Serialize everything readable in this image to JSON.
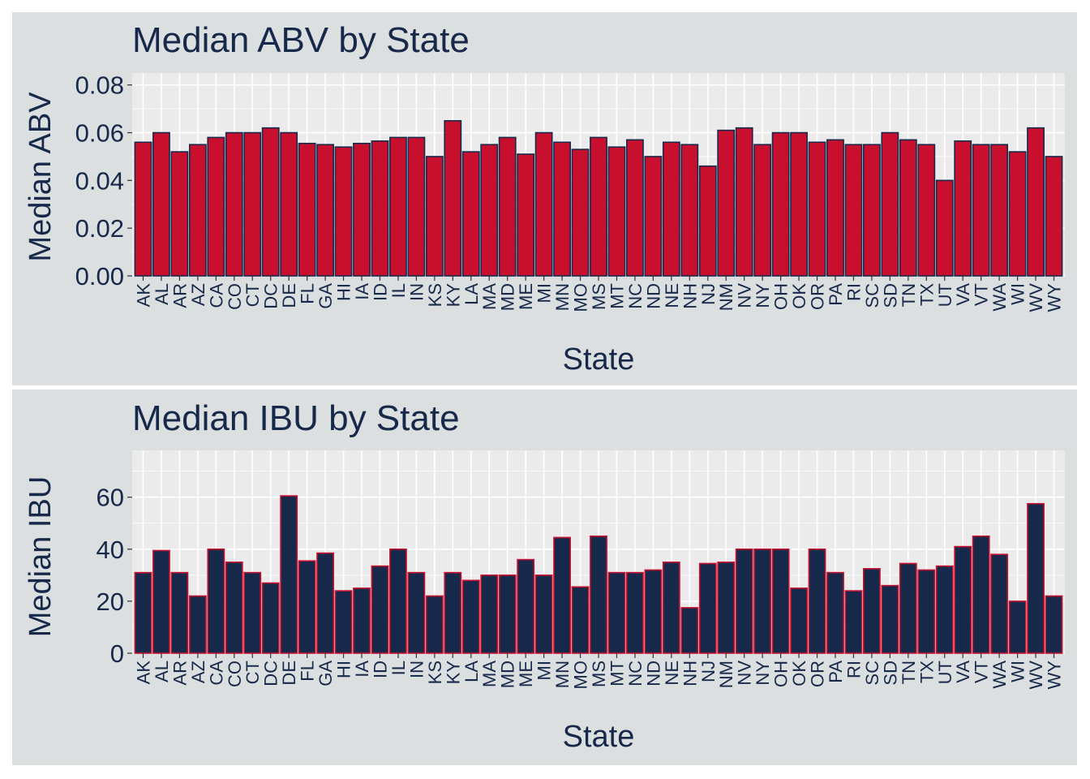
{
  "chart_data": [
    {
      "type": "bar",
      "title": "Median ABV by State",
      "xlabel": "State",
      "ylabel": "Median ABV",
      "ylim": [
        0,
        0.085
      ],
      "yticks": [
        "0.00",
        "0.02",
        "0.04",
        "0.06",
        "0.08"
      ],
      "ytick_values": [
        0,
        0.02,
        0.04,
        0.06,
        0.08
      ],
      "fill_color": "#c8102e",
      "outline_color": "#17294b",
      "categories": [
        "AK",
        "AL",
        "AR",
        "AZ",
        "CA",
        "CO",
        "CT",
        "DC",
        "DE",
        "FL",
        "GA",
        "HI",
        "IA",
        "ID",
        "IL",
        "IN",
        "KS",
        "KY",
        "LA",
        "MA",
        "MD",
        "ME",
        "MI",
        "MN",
        "MO",
        "MS",
        "MT",
        "NC",
        "ND",
        "NE",
        "NH",
        "NJ",
        "NM",
        "NV",
        "NY",
        "OH",
        "OK",
        "OR",
        "PA",
        "RI",
        "SC",
        "SD",
        "TN",
        "TX",
        "UT",
        "VA",
        "VT",
        "WA",
        "WI",
        "WV",
        "WY"
      ],
      "values": [
        0.056,
        0.06,
        0.052,
        0.055,
        0.058,
        0.06,
        0.06,
        0.062,
        0.06,
        0.0555,
        0.055,
        0.054,
        0.0555,
        0.0565,
        0.058,
        0.058,
        0.05,
        0.065,
        0.052,
        0.055,
        0.058,
        0.051,
        0.06,
        0.056,
        0.053,
        0.058,
        0.054,
        0.057,
        0.05,
        0.056,
        0.055,
        0.046,
        0.061,
        0.062,
        0.055,
        0.06,
        0.06,
        0.056,
        0.057,
        0.055,
        0.055,
        0.06,
        0.057,
        0.055,
        0.04,
        0.0565,
        0.055,
        0.055,
        0.052,
        0.062,
        0.05
      ]
    },
    {
      "type": "bar",
      "title": "Median IBU by State",
      "xlabel": "State",
      "ylabel": "Median IBU",
      "ylim": [
        0,
        78
      ],
      "yticks": [
        "0",
        "20",
        "40",
        "60"
      ],
      "ytick_values": [
        0,
        20,
        40,
        60
      ],
      "fill_color": "#17294b",
      "outline_color": "#c8102e",
      "categories": [
        "AK",
        "AL",
        "AR",
        "AZ",
        "CA",
        "CO",
        "CT",
        "DC",
        "DE",
        "FL",
        "GA",
        "HI",
        "IA",
        "ID",
        "IL",
        "IN",
        "KS",
        "KY",
        "LA",
        "MA",
        "MD",
        "ME",
        "MI",
        "MN",
        "MO",
        "MS",
        "MT",
        "NC",
        "ND",
        "NE",
        "NH",
        "NJ",
        "NM",
        "NV",
        "NY",
        "OH",
        "OK",
        "OR",
        "PA",
        "RI",
        "SC",
        "SD",
        "TN",
        "TX",
        "UT",
        "VA",
        "VT",
        "WA",
        "WI",
        "WV",
        "WY"
      ],
      "values": [
        31,
        39.5,
        31,
        22,
        40,
        35,
        31,
        27,
        60.5,
        35.5,
        38.5,
        24,
        25,
        33.5,
        40,
        31,
        22,
        31,
        28,
        30,
        30,
        36,
        30,
        44.5,
        25.5,
        45,
        31,
        31,
        32,
        35,
        17.5,
        34.5,
        35,
        40,
        40,
        40,
        25,
        40,
        31,
        24,
        32.5,
        26,
        34.5,
        32,
        33.5,
        41,
        45,
        38,
        20,
        57.5,
        22
      ]
    }
  ]
}
